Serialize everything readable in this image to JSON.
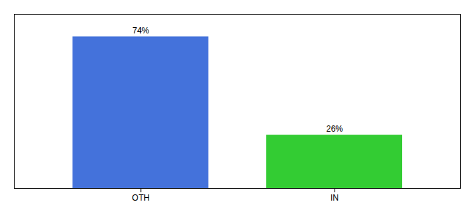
{
  "chart_data": {
    "type": "bar",
    "categories": [
      "OTH",
      "IN"
    ],
    "values": [
      74,
      26
    ],
    "value_labels": [
      "74%",
      "26%"
    ],
    "colors": [
      "#4472db",
      "#33cc33"
    ],
    "ylim": [
      0,
      85
    ],
    "data_labels": true,
    "tick_labels": "x",
    "grid": false
  }
}
